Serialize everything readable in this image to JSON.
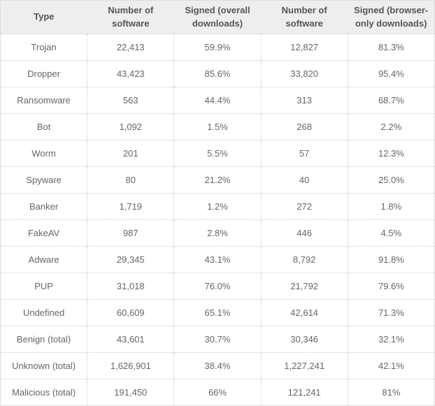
{
  "colors": {
    "header_background": "#eeeeee",
    "header_text": "#555555",
    "cell_text": "#666666",
    "inner_border": "#cccccc",
    "outer_border": "#dddddd"
  },
  "chart_data": {
    "type": "table",
    "title": "",
    "columns": [
      "Type",
      "Number of software",
      "Signed (overall downloads)",
      "Number of software",
      "Signed (browser-only downloads)"
    ],
    "rows": [
      [
        "Trojan",
        "22,413",
        "59.9%",
        "12,827",
        "81.3%"
      ],
      [
        "Dropper",
        "43,423",
        "85.6%",
        "33,820",
        "95.4%"
      ],
      [
        "Ransomware",
        "563",
        "44.4%",
        "313",
        "68.7%"
      ],
      [
        "Bot",
        "1,092",
        "1.5%",
        "268",
        "2.2%"
      ],
      [
        "Worm",
        "201",
        "5.5%",
        "57",
        "12.3%"
      ],
      [
        "Spyware",
        "80",
        "21.2%",
        "40",
        "25.0%"
      ],
      [
        "Banker",
        "1,719",
        "1.2%",
        "272",
        "1.8%"
      ],
      [
        "FakeAV",
        "987",
        "2.8%",
        "446",
        "4.5%"
      ],
      [
        "Adware",
        "29,345",
        "43.1%",
        "8,792",
        "91.8%"
      ],
      [
        "PUP",
        "31,018",
        "76.0%",
        "21,792",
        "79.6%"
      ],
      [
        "Undefined",
        "60,609",
        "65.1%",
        "42,614",
        "71.3%"
      ],
      [
        "Benign (total)",
        "43,601",
        "30.7%",
        "30,346",
        "32.1%"
      ],
      [
        "Unknown (total)",
        "1,626,901",
        "38.4%",
        "1,227,241",
        "42.1%"
      ],
      [
        "Malicious (total)",
        "191,450",
        "66%",
        "121,241",
        "81%"
      ]
    ]
  }
}
